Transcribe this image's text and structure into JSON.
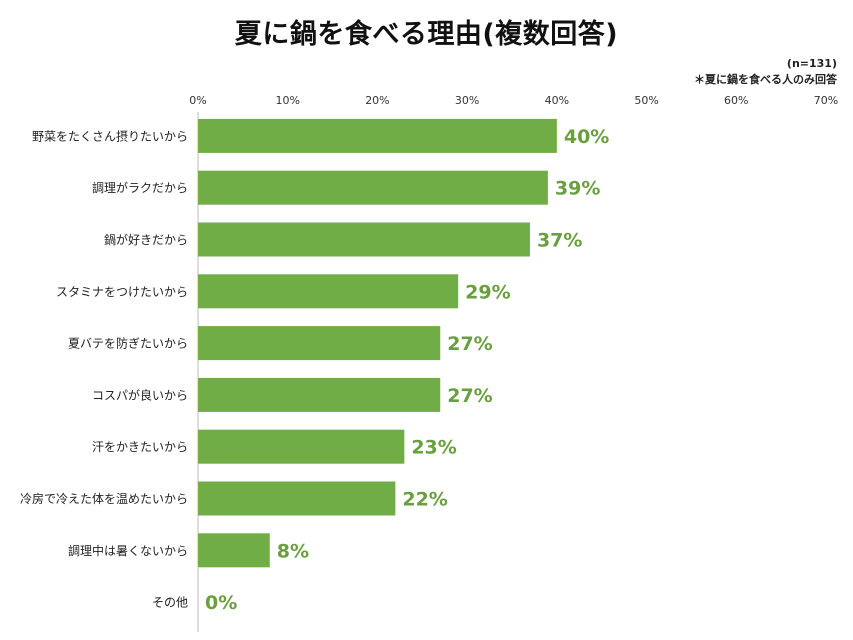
{
  "title": "夏に鍋を食べる理由(複数回答)",
  "notes": {
    "sample": "(n=131)",
    "respondents": "＊夏に鍋を食べる人のみ回答"
  },
  "colors": {
    "bar": "#70AD47",
    "value_label": "#6A9F3F",
    "axis": "#BFBFBF"
  },
  "chart_data": {
    "type": "bar",
    "orientation": "horizontal",
    "title": "夏に鍋を食べる理由(複数回答)",
    "categories": [
      "野菜をたくさん摂りたいから",
      "調理がラクだから",
      "鍋が好きだから",
      "スタミナをつけたいから",
      "夏バテを防ぎたいから",
      "コスパが良いから",
      "汗をかきたいから",
      "冷房で冷えた体を温めたいから",
      "調理中は暑くないから",
      "その他"
    ],
    "values": [
      40,
      39,
      37,
      29,
      27,
      27,
      23,
      22,
      8,
      0
    ],
    "value_labels": [
      "40%",
      "39%",
      "37%",
      "29%",
      "27%",
      "27%",
      "23%",
      "22%",
      "8%",
      "0%"
    ],
    "x_ticks": [
      "0%",
      "10%",
      "20%",
      "30%",
      "40%",
      "50%",
      "60%",
      "70%"
    ],
    "xlim": [
      0,
      70
    ],
    "xlabel": "",
    "ylabel": "",
    "axis_position": "top",
    "grid": false,
    "legend": "none"
  }
}
